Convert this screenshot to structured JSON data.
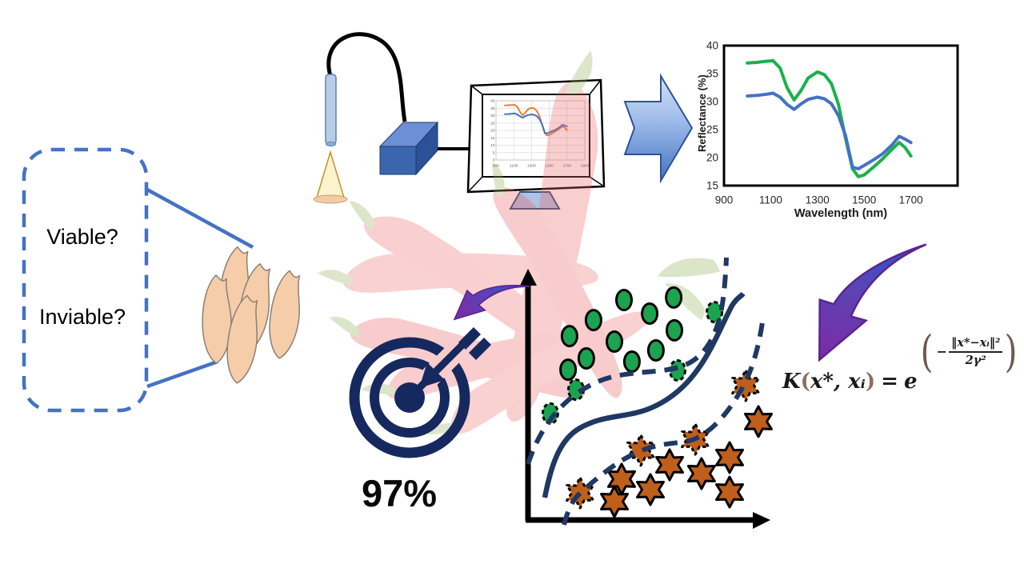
{
  "question_box": {
    "line1": "Viable?",
    "line2": "Inviable?"
  },
  "accuracy": {
    "value": "97%"
  },
  "formula": {
    "k": "K",
    "open": "(",
    "args": "x*, xᵢ",
    "close": ")",
    "equals": "=",
    "base": "e",
    "big_open": "(",
    "minus": "−",
    "numerator": "‖x*−xᵢ‖²",
    "denominator": "2γ²",
    "big_close": ")"
  },
  "colors": {
    "diagram_blue": "#4472C4",
    "navy": "#1F3864",
    "target_navy": "#16295E",
    "green_marker": "#1CA350",
    "star_orange": "#C05F1B",
    "series_green": "#1CB04C",
    "series_blue": "#4472C4",
    "series_orange": "#ED7D31",
    "seed_fill": "#F6CDA9",
    "purple": "#7A2DA8"
  },
  "chart_data": [
    {
      "type": "line",
      "title": "",
      "xlabel": "Wavelength (nm)",
      "ylabel": "Reflectance (%)",
      "xlim": [
        900,
        1900
      ],
      "ylim": [
        15,
        40
      ],
      "xticks": [
        900,
        1100,
        1300,
        1500,
        1700
      ],
      "yticks": [
        15,
        20,
        25,
        30,
        35,
        40
      ],
      "grid": false,
      "legend": "none",
      "series": [
        {
          "name": "green-curve",
          "color": "#1CB04C",
          "x": [
            1000,
            1040,
            1080,
            1110,
            1140,
            1170,
            1200,
            1230,
            1260,
            1300,
            1330,
            1360,
            1390,
            1420,
            1450,
            1475,
            1500,
            1540,
            1580,
            1620,
            1650,
            1675,
            1700
          ],
          "y": [
            36.9,
            37.0,
            37.2,
            37.3,
            36.0,
            32.5,
            30.3,
            32.0,
            34.2,
            35.3,
            34.8,
            33.2,
            29.5,
            23.5,
            18.0,
            16.6,
            16.9,
            18.3,
            19.8,
            21.5,
            22.7,
            21.8,
            20.3
          ]
        },
        {
          "name": "blue-curve",
          "color": "#4472C4",
          "x": [
            1000,
            1040,
            1080,
            1110,
            1140,
            1170,
            1200,
            1230,
            1260,
            1300,
            1330,
            1360,
            1390,
            1420,
            1450,
            1475,
            1500,
            1540,
            1580,
            1620,
            1650,
            1675,
            1700
          ],
          "y": [
            31.0,
            31.1,
            31.3,
            31.5,
            30.8,
            29.5,
            28.6,
            29.6,
            30.4,
            30.8,
            30.5,
            29.6,
            27.5,
            24.0,
            18.3,
            18.0,
            18.6,
            19.6,
            20.7,
            22.3,
            23.8,
            23.3,
            22.7
          ]
        }
      ]
    },
    {
      "type": "line",
      "context": "chart shown on monitor screen",
      "xlim": [
        900,
        1900
      ],
      "ylim": [
        0,
        40
      ],
      "xticks": [
        900,
        1100,
        1300,
        1500,
        1700,
        1900
      ],
      "yticks": [
        0,
        5,
        10,
        15,
        20,
        25,
        30,
        35,
        40
      ],
      "grid": true,
      "series_colors": [
        "#ED7D31",
        "#4472C4"
      ],
      "series_source": "same two spectra as main chart"
    },
    {
      "type": "scatter",
      "context": "SVM classification sketch, unlabeled axes (relative 0-100 coords)",
      "boundary": "solid S-shaped decision curve with two dashed margin curves",
      "classes": [
        {
          "name": "ellipse-class",
          "marker": "ellipse",
          "color": "#1CA350",
          "points": [
            [
              40,
              88.8
            ],
            [
              50.7,
              83.4
            ],
            [
              60.7,
              89.8
            ],
            [
              17.3,
              74.4
            ],
            [
              27.3,
              80.8
            ],
            [
              61,
              76.7
            ],
            [
              16.7,
              61
            ],
            [
              24.3,
              65.5
            ],
            [
              36,
              72.2
            ],
            [
              43.3,
              64.2
            ],
            [
              53.3,
              68.7
            ]
          ],
          "support_vectors": [
            [
              9.3,
              43.5
            ],
            [
              20,
              53
            ],
            [
              62.3,
              60.7
            ],
            [
              77.7,
              84
            ]
          ]
        },
        {
          "name": "star-class",
          "marker": "star6",
          "color": "#C05F1B",
          "points": [
            [
              39,
              17.3
            ],
            [
              36,
              8.3
            ],
            [
              51,
              13.1
            ],
            [
              59,
              23
            ],
            [
              72.3,
              19.5
            ],
            [
              84,
              25.9
            ],
            [
              84,
              12.1
            ],
            [
              96,
              40.3
            ]
          ],
          "support_vectors": [
            [
              21.7,
              11.8
            ],
            [
              47,
              28.8
            ],
            [
              69.7,
              33.2
            ],
            [
              90.7,
              54.6
            ]
          ]
        }
      ]
    }
  ]
}
